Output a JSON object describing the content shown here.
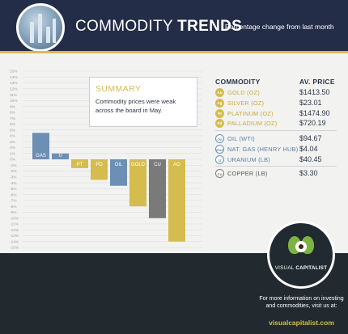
{
  "header": {
    "title_light": "COMMODITY",
    "title_bold": "TRENDS",
    "subtitle": "Percentage change from last month"
  },
  "summary": {
    "title": "SUMMARY",
    "text": "Commodity prices were weak across the board in May."
  },
  "table": {
    "col_commodity": "COMMODITY",
    "col_price": "AV. PRICE",
    "rows": [
      {
        "symbol": "Au",
        "name": "GOLD (OZ)",
        "price": "$1413.50",
        "group": "precious"
      },
      {
        "symbol": "Ag",
        "name": "SILVER (OZ)",
        "price": "$23.01",
        "group": "precious"
      },
      {
        "symbol": "Pt",
        "name": "PLATINUM (OZ)",
        "price": "$1474.90",
        "group": "precious"
      },
      {
        "symbol": "Pd",
        "name": "PALLADIUM (OZ)",
        "price": "$720.19",
        "group": "precious"
      },
      {
        "symbol": "Oil",
        "name": "OIL (WTI)",
        "price": "$94.67",
        "group": "energy"
      },
      {
        "symbol": "Gas",
        "name": "NAT. GAS (HENRY HUB)",
        "price": "$4.04",
        "group": "energy"
      },
      {
        "symbol": "U",
        "name": "URANIUM (LB)",
        "price": "$40.45",
        "group": "energy"
      },
      {
        "symbol": "Cu",
        "name": "COPPER (LB)",
        "price": "$3.30",
        "group": "base"
      }
    ]
  },
  "footer": {
    "brand_a": "VISUAL",
    "brand_b": "CAPITALIST",
    "info": "For more information on investing and commodities, visit us at:",
    "url": "visualcapitalist.com"
  },
  "colors": {
    "navy": "#232d47",
    "gold": "#d4bd4e",
    "energy_blue": "#6c8fb3",
    "base_gray": "#7a7a7a"
  },
  "chart_data": {
    "type": "bar",
    "categories": [
      "GAS",
      "U",
      "PT",
      "PD",
      "OIL",
      "GOLD",
      "CU",
      "AG"
    ],
    "values": [
      4.5,
      1.0,
      -1.5,
      -3.5,
      -4.5,
      -8.0,
      -10.0,
      -14.0
    ],
    "bar_colors": [
      "#6c8fb3",
      "#6c8fb3",
      "#d4bd4e",
      "#d4bd4e",
      "#6c8fb3",
      "#d4bd4e",
      "#7a7a7a",
      "#d4bd4e"
    ],
    "ylim": [
      -15,
      15
    ],
    "yticks": [
      "15%",
      "14%",
      "13%",
      "12%",
      "11%",
      "10%",
      "9%",
      "8%",
      "7%",
      "6%",
      "5%",
      "4%",
      "3%",
      "2%",
      "1%",
      "0%",
      "-1%",
      "-2%",
      "-3%",
      "-4%",
      "-5%",
      "-6%",
      "-7%",
      "-8%",
      "-9%",
      "-10%",
      "-11%",
      "-12%",
      "-13%",
      "-14%",
      "-15%"
    ],
    "grid": true,
    "title": "",
    "xlabel": "",
    "ylabel": ""
  }
}
